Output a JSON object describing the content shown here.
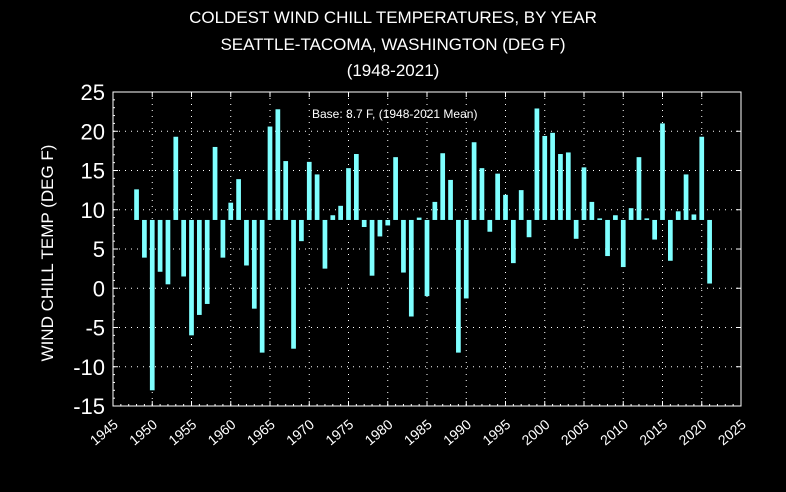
{
  "chart_data": {
    "type": "bar",
    "title_lines": [
      "COLDEST WIND CHILL TEMPERATURES, BY YEAR",
      "SEATTLE-TACOMA, WASHINGTON (DEG F)",
      "(1948-2021)"
    ],
    "xlabel": "",
    "ylabel": "WIND CHILL TEMP (DEG F)",
    "annotation": "Base: 8.7 F, (1948-2021 Mean)",
    "base": 8.7,
    "xlim": [
      1945,
      2025
    ],
    "ylim": [
      -15,
      25
    ],
    "xticks": [
      1945,
      1950,
      1955,
      1960,
      1965,
      1970,
      1975,
      1980,
      1985,
      1990,
      1995,
      2000,
      2005,
      2010,
      2015,
      2020,
      2025
    ],
    "yticks": [
      -15,
      -10,
      -5,
      0,
      5,
      10,
      15,
      20,
      25
    ],
    "grid": true,
    "bar_color": "#7fffff",
    "years": [
      1948,
      1949,
      1950,
      1951,
      1952,
      1953,
      1954,
      1955,
      1956,
      1957,
      1958,
      1959,
      1960,
      1961,
      1962,
      1963,
      1964,
      1965,
      1966,
      1967,
      1968,
      1969,
      1970,
      1971,
      1972,
      1973,
      1974,
      1975,
      1976,
      1977,
      1978,
      1979,
      1980,
      1981,
      1982,
      1983,
      1984,
      1985,
      1986,
      1987,
      1988,
      1989,
      1990,
      1991,
      1992,
      1993,
      1994,
      1995,
      1996,
      1997,
      1998,
      1999,
      2000,
      2001,
      2002,
      2003,
      2004,
      2005,
      2006,
      2007,
      2008,
      2009,
      2010,
      2011,
      2012,
      2013,
      2014,
      2015,
      2016,
      2017,
      2018,
      2019,
      2020,
      2021
    ],
    "values": [
      12.6,
      3.9,
      -13.0,
      2.1,
      0.5,
      19.3,
      1.5,
      -6.0,
      -3.4,
      -2.0,
      18.0,
      3.9,
      10.9,
      13.9,
      2.9,
      -2.6,
      -8.2,
      20.6,
      22.8,
      16.2,
      -7.7,
      6.0,
      16.1,
      14.5,
      2.5,
      9.3,
      10.5,
      15.3,
      17.1,
      7.8,
      1.6,
      6.6,
      8.0,
      16.7,
      2.0,
      -3.6,
      9.0,
      -1.0,
      11.0,
      17.2,
      13.8,
      -8.2,
      -1.3,
      18.6,
      15.3,
      7.2,
      14.6,
      11.9,
      3.2,
      12.5,
      6.5,
      22.9,
      19.4,
      19.8,
      17.1,
      17.3,
      6.3,
      15.4,
      11.0,
      8.9,
      4.1,
      9.3,
      2.7,
      10.2,
      16.7,
      8.9,
      6.2,
      21.0,
      3.5,
      9.8,
      14.5,
      9.4,
      19.3,
      0.6
    ]
  }
}
